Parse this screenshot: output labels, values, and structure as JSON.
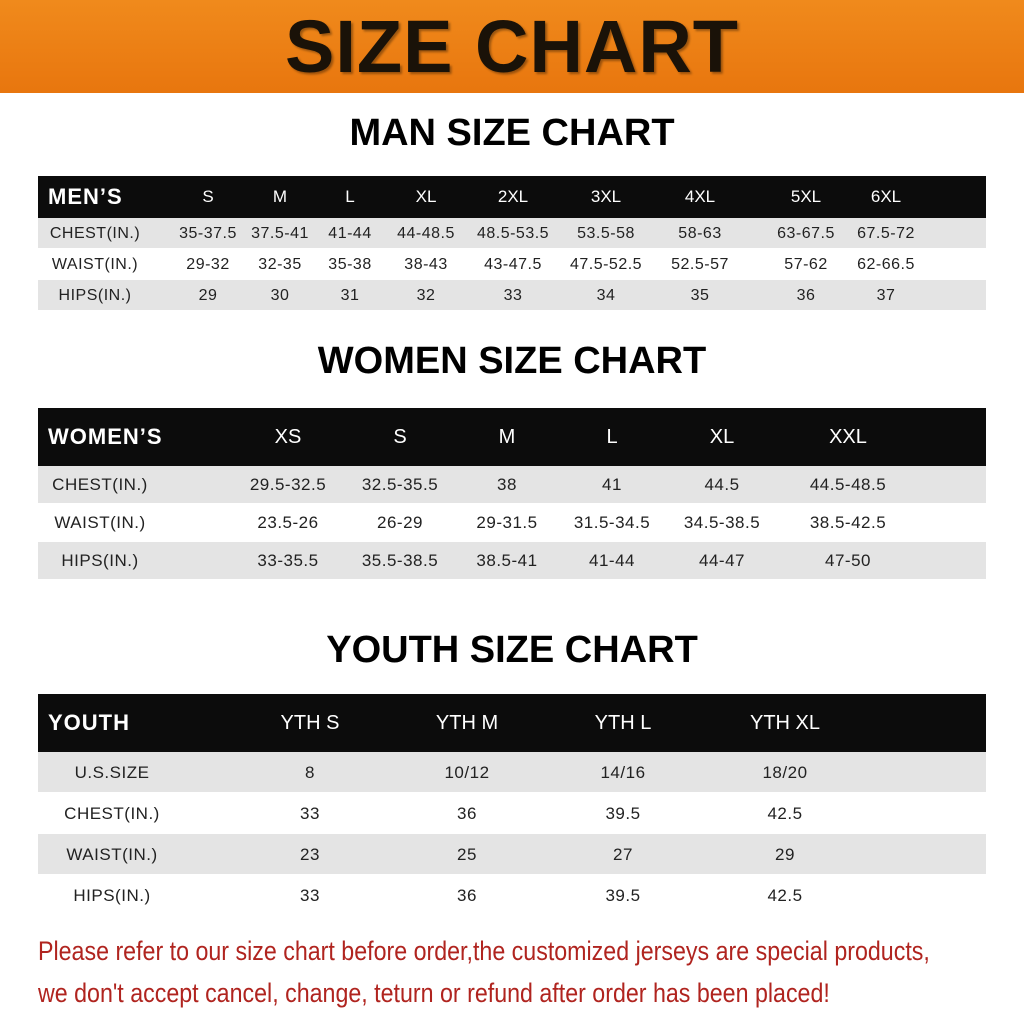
{
  "header": {
    "title": "SIZE CHART"
  },
  "sections": [
    {
      "title": "MAN SIZE CHART",
      "header": [
        "MEN’S",
        "S",
        "M",
        "L",
        "XL",
        "2XL",
        "3XL",
        "4XL",
        "5XL",
        "6XL"
      ],
      "rows": [
        [
          "CHEST(IN.)",
          "35-37.5",
          "37.5-41",
          "41-44",
          "44-48.5",
          "48.5-53.5",
          "53.5-58",
          "58-63",
          "63-67.5",
          "67.5-72"
        ],
        [
          "WAIST(IN.)",
          "29-32",
          "32-35",
          "35-38",
          "38-43",
          "43-47.5",
          "47.5-52.5",
          "52.5-57",
          "57-62",
          "62-66.5"
        ],
        [
          "HIPS(IN.)",
          "29",
          "30",
          "31",
          "32",
          "33",
          "34",
          "35",
          "36",
          "37"
        ]
      ]
    },
    {
      "title": "WOMEN SIZE CHART",
      "header": [
        "WOMEN’S",
        "XS",
        "S",
        "M",
        "L",
        "XL",
        "XXL"
      ],
      "rows": [
        [
          "CHEST(IN.)",
          "29.5-32.5",
          "32.5-35.5",
          "38",
          "41",
          "44.5",
          "44.5-48.5"
        ],
        [
          "WAIST(IN.)",
          "23.5-26",
          "26-29",
          "29-31.5",
          "31.5-34.5",
          "34.5-38.5",
          "38.5-42.5"
        ],
        [
          "HIPS(IN.)",
          "33-35.5",
          "35.5-38.5",
          "38.5-41",
          "41-44",
          "44-47",
          "47-50"
        ]
      ]
    },
    {
      "title": "YOUTH SIZE CHART",
      "header": [
        "YOUTH",
        "YTH S",
        "YTH M",
        "YTH L",
        "YTH XL"
      ],
      "rows": [
        [
          "U.S.SIZE",
          "8",
          "10/12",
          "14/16",
          "18/20"
        ],
        [
          "CHEST(IN.)",
          "33",
          "36",
          "39.5",
          "42.5"
        ],
        [
          "WAIST(IN.)",
          "23",
          "25",
          "27",
          "29"
        ],
        [
          "HIPS(IN.)",
          "33",
          "36",
          "39.5",
          "42.5"
        ]
      ]
    }
  ],
  "notice": [
    "Please refer to our size chart before order,the customized jerseys are special products,",
    "we don't accept cancel, change, teturn or refund after order has been placed!"
  ]
}
